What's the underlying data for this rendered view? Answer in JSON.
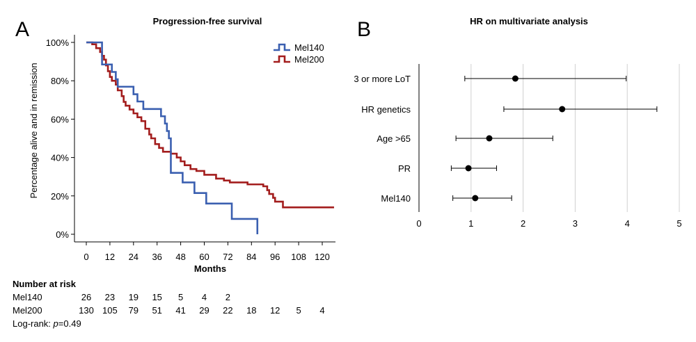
{
  "panels": {
    "a_letter": "A",
    "b_letter": "B"
  },
  "chart_data": [
    {
      "type": "line",
      "title": "Progression-free survival",
      "xlabel": "Months",
      "ylabel": "Percentage alive and in remission",
      "xlim": [
        0,
        126
      ],
      "ylim": [
        0,
        100
      ],
      "xticks": [
        0,
        12,
        24,
        36,
        48,
        60,
        72,
        84,
        96,
        108,
        120
      ],
      "yticks": [
        0,
        20,
        40,
        60,
        80,
        100
      ],
      "ytick_labels": [
        "0%",
        "20%",
        "40%",
        "60%",
        "80%",
        "100%"
      ],
      "legend_position": "top-right",
      "series": [
        {
          "name": "Mel140",
          "color": "#3a5fb0",
          "step": true,
          "points": [
            [
              0,
              100
            ],
            [
              8,
              100
            ],
            [
              8,
              88.5
            ],
            [
              13,
              88.5
            ],
            [
              13,
              84.6
            ],
            [
              15,
              84.6
            ],
            [
              15,
              80.8
            ],
            [
              16,
              80.8
            ],
            [
              16,
              76.9
            ],
            [
              24,
              76.9
            ],
            [
              24,
              73
            ],
            [
              26,
              73
            ],
            [
              26,
              69.2
            ],
            [
              29,
              69.2
            ],
            [
              29,
              65.3
            ],
            [
              38,
              65.3
            ],
            [
              38,
              61.5
            ],
            [
              40,
              61.5
            ],
            [
              40,
              57.7
            ],
            [
              41,
              57.7
            ],
            [
              41,
              53.8
            ],
            [
              42,
              53.8
            ],
            [
              42,
              50
            ],
            [
              43,
              50
            ],
            [
              43,
              32
            ],
            [
              49,
              32
            ],
            [
              49,
              27
            ],
            [
              55,
              27
            ],
            [
              55,
              21.5
            ],
            [
              61,
              21.5
            ],
            [
              61,
              16
            ],
            [
              74,
              16
            ],
            [
              74,
              8
            ],
            [
              87,
              8
            ],
            [
              87,
              0
            ]
          ]
        },
        {
          "name": "Mel200",
          "color": "#a31d1d",
          "step": true,
          "points": [
            [
              0,
              100
            ],
            [
              3,
              99
            ],
            [
              5,
              97
            ],
            [
              7,
              95
            ],
            [
              8,
              93
            ],
            [
              9,
              91
            ],
            [
              10,
              88
            ],
            [
              11,
              85
            ],
            [
              12,
              82
            ],
            [
              13,
              80
            ],
            [
              15,
              78
            ],
            [
              16,
              75
            ],
            [
              18,
              72
            ],
            [
              19,
              69
            ],
            [
              20,
              67
            ],
            [
              22,
              65
            ],
            [
              24,
              63
            ],
            [
              26,
              61
            ],
            [
              28,
              59
            ],
            [
              30,
              55
            ],
            [
              32,
              52
            ],
            [
              33,
              50
            ],
            [
              35,
              47
            ],
            [
              37,
              45
            ],
            [
              39,
              43
            ],
            [
              43,
              42
            ],
            [
              46,
              40
            ],
            [
              48,
              38
            ],
            [
              50,
              36
            ],
            [
              53,
              34
            ],
            [
              56,
              33
            ],
            [
              60,
              31
            ],
            [
              64,
              31
            ],
            [
              66,
              29
            ],
            [
              70,
              28
            ],
            [
              73,
              27
            ],
            [
              78,
              27
            ],
            [
              82,
              26
            ],
            [
              90,
              25
            ],
            [
              92,
              23
            ],
            [
              93,
              21
            ],
            [
              95,
              19
            ],
            [
              96,
              17
            ],
            [
              99,
              17
            ],
            [
              100,
              14
            ],
            [
              104,
              14
            ],
            [
              126,
              14
            ]
          ]
        }
      ],
      "risk_table": {
        "title": "Number at risk",
        "timepoints": [
          0,
          12,
          24,
          36,
          48,
          60,
          72,
          84,
          96,
          108,
          120
        ],
        "rows": [
          {
            "label": "Mel140",
            "values": [
              "26",
              "23",
              "19",
              "15",
              "5",
              "4",
              "2",
              "",
              "",
              "",
              ""
            ]
          },
          {
            "label": "Mel200",
            "values": [
              "130",
              "105",
              "79",
              "51",
              "41",
              "29",
              "22",
              "18",
              "12",
              "5",
              "4"
            ]
          }
        ],
        "logrank_prefix": "Log-rank: ",
        "logrank_p": "p",
        "logrank_value": "=0.49"
      }
    },
    {
      "type": "forest",
      "title": "HR on multivariate analysis",
      "xlim": [
        0,
        5
      ],
      "xticks": [
        0,
        1,
        2,
        3,
        4,
        5
      ],
      "grid": true,
      "rows": [
        {
          "label": "3 or more LoT",
          "hr": 1.85,
          "lower": 0.88,
          "upper": 3.98
        },
        {
          "label": "HR genetics",
          "hr": 2.75,
          "lower": 1.63,
          "upper": 4.57
        },
        {
          "label": "Age >65",
          "hr": 1.35,
          "lower": 0.71,
          "upper": 2.57
        },
        {
          "label": "PR",
          "hr": 0.95,
          "lower": 0.62,
          "upper": 1.49
        },
        {
          "label": "Mel140",
          "hr": 1.08,
          "lower": 0.65,
          "upper": 1.78
        }
      ]
    }
  ]
}
